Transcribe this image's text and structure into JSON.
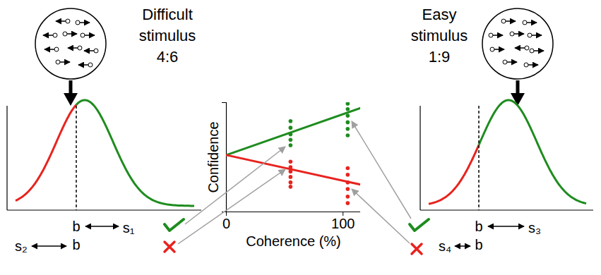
{
  "chart_data": {
    "type": "scatter",
    "x_label": "Coherence (%)",
    "y_label": "Confidence",
    "xlim": [
      0,
      115
    ],
    "xticks": [
      0,
      100
    ],
    "ylim": [
      0,
      1
    ],
    "yticks": [
      0,
      1
    ],
    "tick_labels": "x",
    "series": [
      {
        "type": "line",
        "color": "#1e8c1e",
        "x": [
          0,
          115
        ],
        "values": [
          0.52,
          0.95
        ]
      },
      {
        "type": "line",
        "color": "#e8231e",
        "x": [
          0,
          115
        ],
        "values": [
          0.52,
          0.25
        ]
      },
      {
        "type": "scatter",
        "color": "#1e8c1e",
        "x": [
          55,
          55,
          55,
          55,
          55,
          104,
          104,
          104,
          104,
          104,
          104
        ],
        "values": [
          0.83,
          0.77,
          0.71,
          0.66,
          0.61,
          0.99,
          0.94,
          0.88,
          0.82,
          0.76,
          0.7
        ]
      },
      {
        "type": "scatter",
        "color": "#e8231e",
        "x": [
          55,
          55,
          55,
          55,
          55,
          55,
          104,
          104,
          104,
          104,
          104,
          104
        ],
        "values": [
          0.46,
          0.41,
          0.37,
          0.32,
          0.27,
          0.23,
          0.4,
          0.34,
          0.27,
          0.21,
          0.14,
          0.08
        ]
      }
    ]
  },
  "diagram": {
    "left_panel": {
      "title": [
        "Difficult",
        "stimulus",
        "4:6"
      ],
      "boundary": "b",
      "upper_distance": [
        "b",
        "s₁"
      ],
      "lower_distance": [
        "s₂",
        "b"
      ]
    },
    "right_panel": {
      "title": [
        "Easy",
        "stimulus",
        "1:9"
      ],
      "boundary": "b",
      "upper_distance": [
        "b",
        "s₃"
      ],
      "lower_distance": [
        "s₄",
        "b"
      ]
    }
  }
}
